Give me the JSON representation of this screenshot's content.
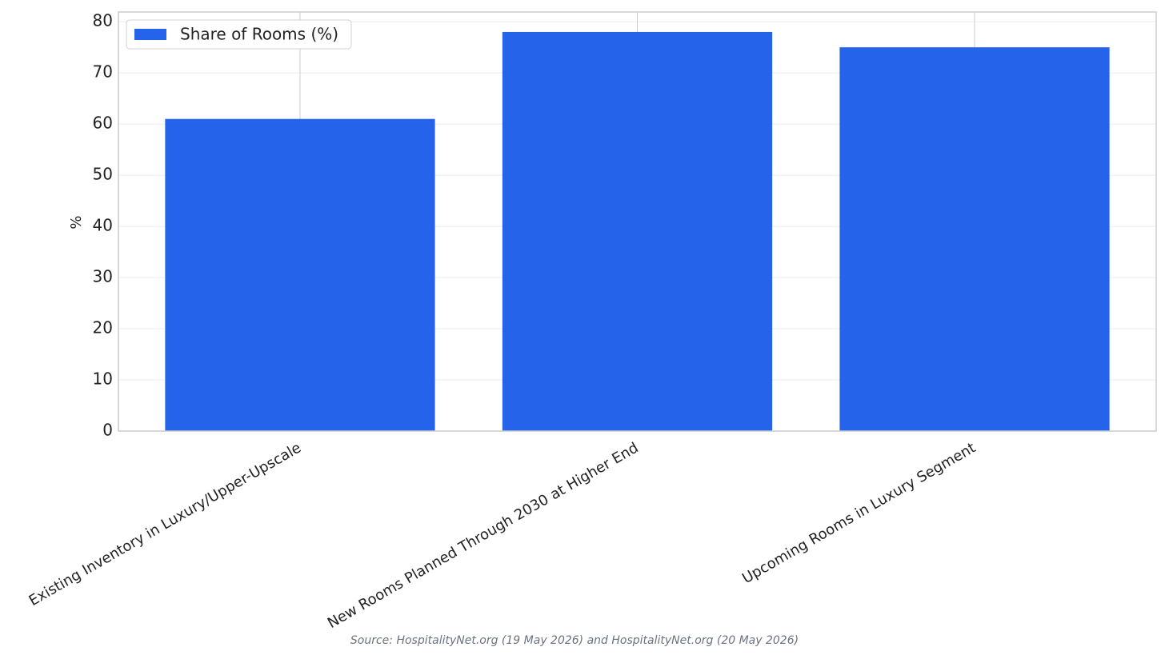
{
  "chart_data": {
    "type": "bar",
    "categories": [
      "Existing Inventory in Luxury/Upper-Upscale",
      "New Rooms Planned Through 2030 at Higher End",
      "Upcoming Rooms in Luxury Segment"
    ],
    "series": [
      {
        "name": "Share of Rooms (%)",
        "color": "#2563eb",
        "values": [
          61,
          78,
          75
        ]
      }
    ],
    "y_label": "%",
    "ylim": [
      0,
      81.9
    ],
    "yticks": [
      0,
      10,
      20,
      30,
      40,
      50,
      60,
      70,
      80
    ],
    "grid": true,
    "legend": "upper left",
    "source": "Source: HospitalityNet.org (19 May 2026) and HospitalityNet.org (20 May 2026)"
  }
}
